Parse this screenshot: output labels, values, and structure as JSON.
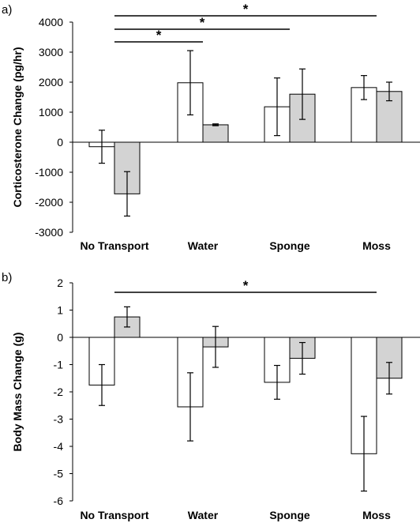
{
  "chart_data": [
    {
      "panel_label": "a)",
      "type": "bar",
      "ylabel": "Corticosterone Change (pg/hr)",
      "ylim": [
        -3000,
        4000
      ],
      "yticks": [
        4000,
        3000,
        2000,
        1000,
        0,
        -1000,
        -2000,
        -3000
      ],
      "categories": [
        "No Transport",
        "Water",
        "Sponge",
        "Moss"
      ],
      "series": [
        {
          "fill": "#ffffff",
          "values": [
            -150,
            1980,
            1180,
            1820
          ],
          "errors": [
            550,
            1070,
            960,
            400
          ]
        },
        {
          "fill": "#d3d3d3",
          "values": [
            -1720,
            580,
            1600,
            1690
          ],
          "errors": [
            740,
            30,
            840,
            310
          ]
        }
      ],
      "significance": [
        {
          "from": "No Transport",
          "to": "Water",
          "label": "*"
        },
        {
          "from": "No Transport",
          "to": "Sponge",
          "label": "*"
        },
        {
          "from": "No Transport",
          "to": "Moss",
          "label": "*"
        }
      ]
    },
    {
      "panel_label": "b)",
      "type": "bar",
      "ylabel": "Body Mass Change (g)",
      "ylim": [
        -6,
        2
      ],
      "yticks": [
        2,
        1,
        0,
        -1,
        -2,
        -3,
        -4,
        -5,
        -6
      ],
      "categories": [
        "No Transport",
        "Water",
        "Sponge",
        "Moss"
      ],
      "series": [
        {
          "fill": "#ffffff",
          "values": [
            -1.75,
            -2.55,
            -1.65,
            -4.27
          ],
          "errors": [
            0.75,
            1.25,
            0.62,
            1.37
          ]
        },
        {
          "fill": "#d3d3d3",
          "values": [
            0.75,
            -0.35,
            -0.77,
            -1.5
          ],
          "errors": [
            0.37,
            0.75,
            0.58,
            0.58
          ]
        }
      ],
      "significance": [
        {
          "from": "No Transport",
          "to": "Moss",
          "label": "*"
        }
      ]
    }
  ]
}
